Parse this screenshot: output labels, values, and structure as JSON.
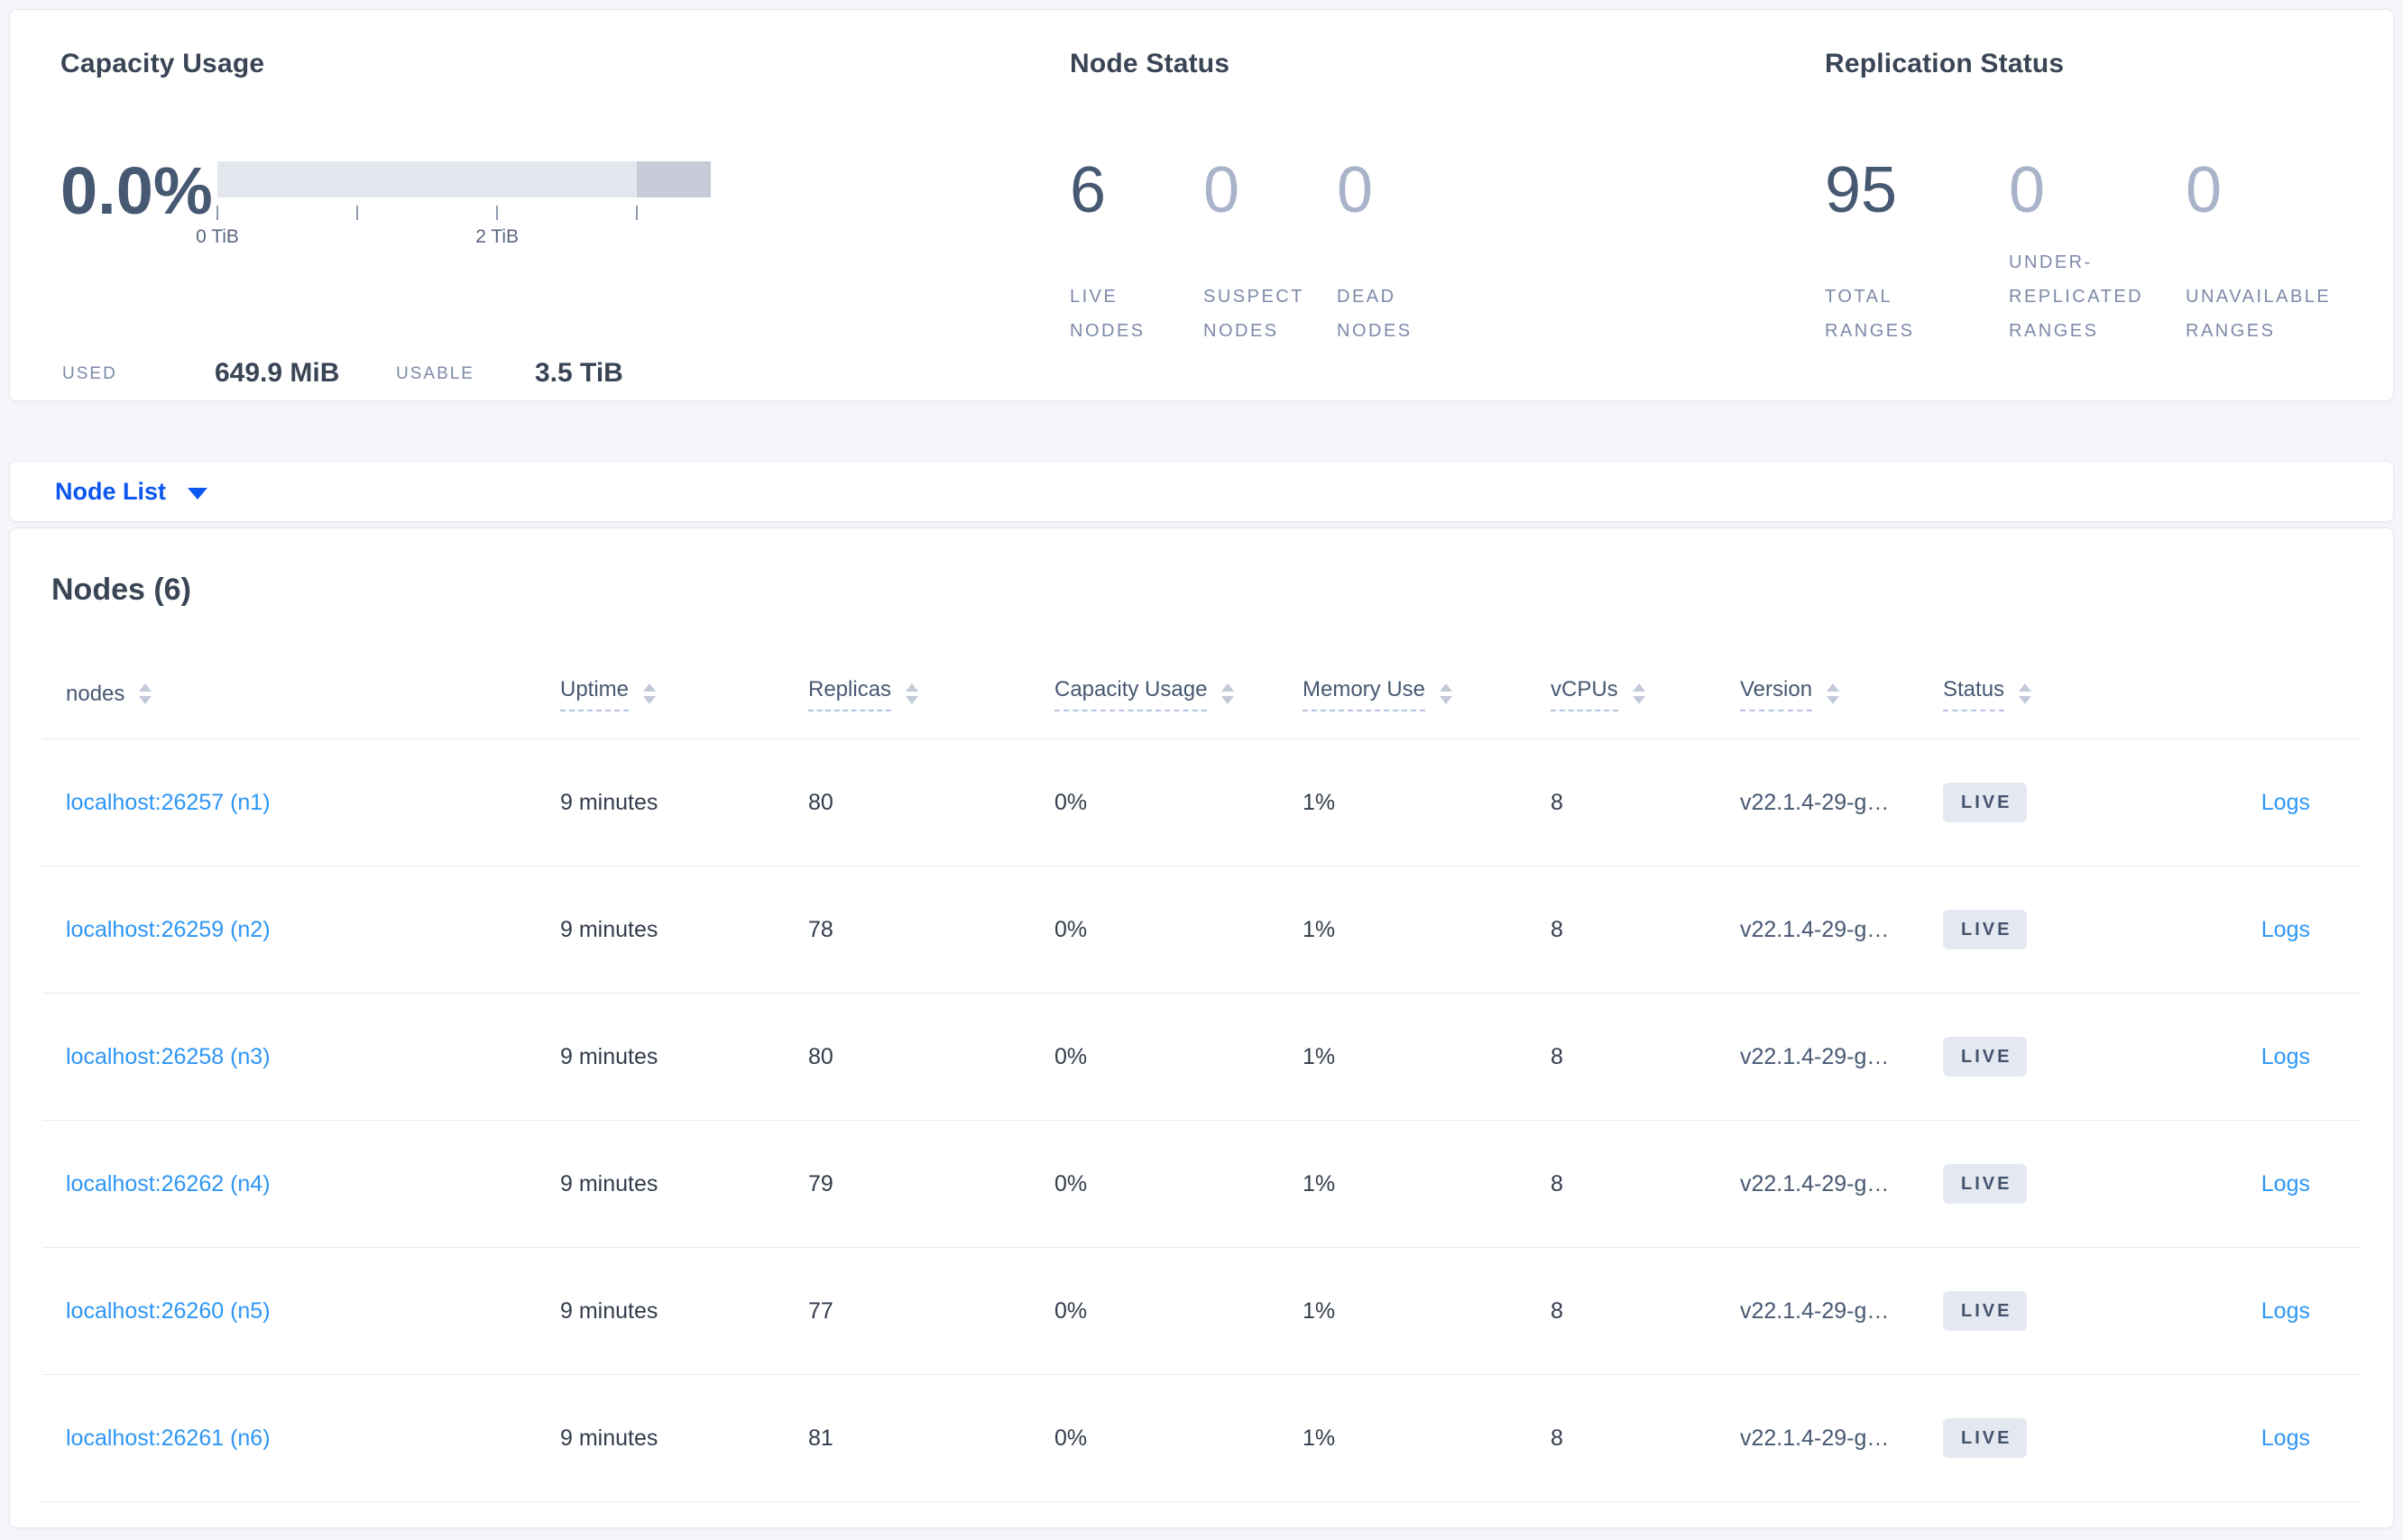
{
  "colors": {
    "page_bg": "#f4f6fa",
    "card_bg": "#ffffff",
    "card_border": "#e4e9f0",
    "heading": "#394455",
    "slate_number": "#475872",
    "muted_number": "#a9b3c9",
    "metric_label": "#7e89a9",
    "cell_text": "#333c4c",
    "version_text": "#475872",
    "link_blue": "#2d96f5",
    "selector_blue": "#0b57f0",
    "badge_bg": "#e4e9f1",
    "badge_text": "#44536d",
    "bar_track": "#e3e6ec",
    "bar_segment": "#c6cbd7",
    "row_border": "#e7eaf0",
    "header_underline": "#b4c4de",
    "sort_arrow": "#c3cad7",
    "tick": "#8f9ab1",
    "tick_label": "#5a6780"
  },
  "summary": {
    "capacity": {
      "title": "Capacity Usage",
      "percent": "0.0%",
      "used_label": "USED",
      "used_value": "649.9 MiB",
      "usable_label": "USABLE",
      "usable_value": "3.5 TiB",
      "axis": {
        "tick_percents": [
          0,
          28.3,
          56.7,
          85
        ],
        "labels": [
          {
            "text": "0 TiB",
            "percent": 0
          },
          {
            "text": "2 TiB",
            "percent": 56.7
          }
        ],
        "segment_start_percent": 85
      }
    },
    "node_status": {
      "title": "Node Status",
      "metrics": [
        {
          "value": "6",
          "label": "LIVE\nNODES",
          "muted": false
        },
        {
          "value": "0",
          "label": "SUSPECT\nNODES",
          "muted": true
        },
        {
          "value": "0",
          "label": "DEAD\nNODES",
          "muted": true
        }
      ]
    },
    "replication": {
      "title": "Replication Status",
      "metrics": [
        {
          "value": "95",
          "label": "TOTAL\nRANGES",
          "muted": false
        },
        {
          "value": "0",
          "label": "UNDER-\nREPLICATED\nRANGES",
          "muted": true
        },
        {
          "value": "0",
          "label": "UNAVAILABLE\nRANGES",
          "muted": true
        }
      ]
    }
  },
  "view_selector": {
    "label": "Node List"
  },
  "table": {
    "title": "Nodes (6)",
    "columns": [
      {
        "label": "nodes",
        "tooltip": false,
        "sortable": true
      },
      {
        "label": "Uptime",
        "tooltip": true,
        "sortable": true
      },
      {
        "label": "Replicas",
        "tooltip": true,
        "sortable": true
      },
      {
        "label": "Capacity Usage",
        "tooltip": true,
        "sortable": true
      },
      {
        "label": "Memory Use",
        "tooltip": true,
        "sortable": true
      },
      {
        "label": "vCPUs",
        "tooltip": true,
        "sortable": true
      },
      {
        "label": "Version",
        "tooltip": true,
        "sortable": true
      },
      {
        "label": "Status",
        "tooltip": true,
        "sortable": true
      },
      {
        "label": "",
        "tooltip": false,
        "sortable": false
      }
    ],
    "rows": [
      {
        "node": "localhost:26257 (n1)",
        "uptime": "9 minutes",
        "replicas": "80",
        "capacity": "0%",
        "memory": "1%",
        "vcpus": "8",
        "version": "v22.1.4-29-g…",
        "status": "LIVE",
        "logs": "Logs"
      },
      {
        "node": "localhost:26259 (n2)",
        "uptime": "9 minutes",
        "replicas": "78",
        "capacity": "0%",
        "memory": "1%",
        "vcpus": "8",
        "version": "v22.1.4-29-g…",
        "status": "LIVE",
        "logs": "Logs"
      },
      {
        "node": "localhost:26258 (n3)",
        "uptime": "9 minutes",
        "replicas": "80",
        "capacity": "0%",
        "memory": "1%",
        "vcpus": "8",
        "version": "v22.1.4-29-g…",
        "status": "LIVE",
        "logs": "Logs"
      },
      {
        "node": "localhost:26262 (n4)",
        "uptime": "9 minutes",
        "replicas": "79",
        "capacity": "0%",
        "memory": "1%",
        "vcpus": "8",
        "version": "v22.1.4-29-g…",
        "status": "LIVE",
        "logs": "Logs"
      },
      {
        "node": "localhost:26260 (n5)",
        "uptime": "9 minutes",
        "replicas": "77",
        "capacity": "0%",
        "memory": "1%",
        "vcpus": "8",
        "version": "v22.1.4-29-g…",
        "status": "LIVE",
        "logs": "Logs"
      },
      {
        "node": "localhost:26261 (n6)",
        "uptime": "9 minutes",
        "replicas": "81",
        "capacity": "0%",
        "memory": "1%",
        "vcpus": "8",
        "version": "v22.1.4-29-g…",
        "status": "LIVE",
        "logs": "Logs"
      }
    ]
  }
}
